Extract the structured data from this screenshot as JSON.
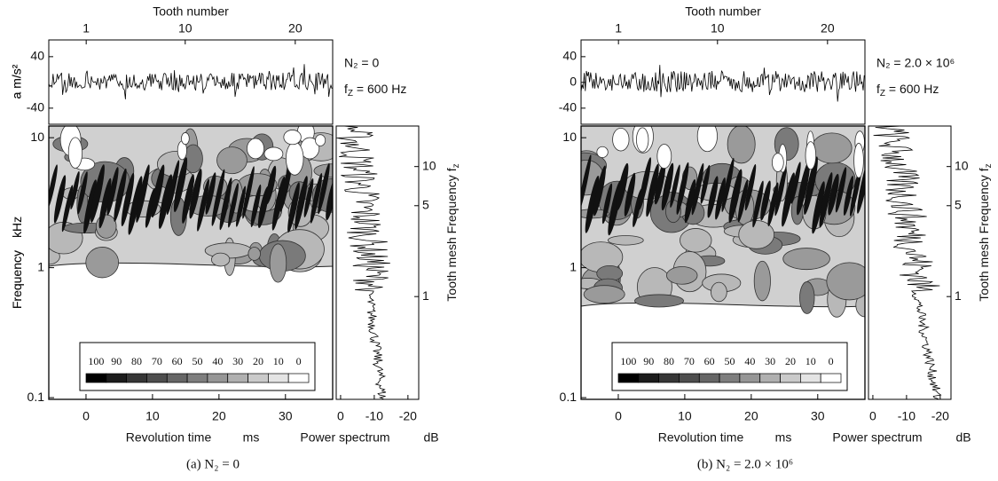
{
  "chart_data": [
    {
      "type": "contour",
      "caption": "(a) N₂ = 0",
      "tooth_axis": {
        "label": "Tooth number",
        "xlim": [
          -2.4,
          23.4
        ],
        "xticks": [
          1,
          10,
          20
        ]
      },
      "signal": {
        "ylabel": "a   m/s²",
        "ylim": [
          -65,
          66
        ],
        "yticks": [
          40,
          -40
        ]
      },
      "annotation": {
        "n2": "N₂ = 0",
        "fz": [
          "f",
          "Z",
          " = 600 Hz"
        ]
      },
      "xlabel": "Revolution time",
      "xunit": "ms",
      "xlim": [
        -5.6,
        37.1
      ],
      "xticks": [
        0,
        10,
        20,
        30
      ],
      "ylabel": "Frequency",
      "yunit": "kHz",
      "log_y": true,
      "ylim": [
        0.097,
        12.3
      ],
      "yticks": [
        0.1,
        1,
        10
      ],
      "y2label": [
        "Tooth mesh Frequency f",
        "z"
      ],
      "y2lim": [
        0.162,
        20.5
      ],
      "y2ticks": [
        1,
        5,
        10
      ],
      "spectrum": {
        "xlabel": "Power spectrum",
        "xunit": "dB",
        "xlim": [
          1.3,
          -23.2
        ],
        "xticks": [
          0,
          -10,
          -20
        ]
      },
      "legend": {
        "levels": [
          100,
          90,
          80,
          70,
          60,
          50,
          40,
          30,
          20,
          10,
          0
        ],
        "colors": [
          "#000000",
          "#1c1c1c",
          "#363636",
          "#4e4e4e",
          "#666666",
          "#7e7e7e",
          "#969696",
          "#b0b0b0",
          "#cacaca",
          "#e4e4e4",
          "#ffffff"
        ]
      }
    },
    {
      "type": "contour",
      "caption": "(b) N₂ = 2.0 × 10⁶",
      "tooth_axis": {
        "label": "Tooth number",
        "xlim": [
          -2.4,
          23.4
        ],
        "xticks": [
          1,
          10,
          20
        ]
      },
      "signal": {
        "ylabel": "a   m/s²",
        "ylim": [
          -65,
          66
        ],
        "yticks": [
          40,
          0,
          -40
        ]
      },
      "annotation": {
        "n2": "N₂ = 2.0 × 10⁶",
        "fz": [
          "f",
          "Z",
          " = 600 Hz"
        ]
      },
      "xlabel": "Revolution time",
      "xunit": "ms",
      "xlim": [
        -5.6,
        37.1
      ],
      "xticks": [
        0,
        10,
        20,
        30
      ],
      "ylabel": "Frequency",
      "yunit": "kHz",
      "log_y": true,
      "ylim": [
        0.097,
        12.3
      ],
      "yticks": [
        0.1,
        1,
        10
      ],
      "y2label": [
        "Tooth mesh Frequency f",
        "z"
      ],
      "y2lim": [
        0.162,
        20.5
      ],
      "y2ticks": [
        1,
        5,
        10
      ],
      "spectrum": {
        "xlabel": "Power spectrum",
        "xunit": "dB",
        "xlim": [
          1.3,
          -23.2
        ],
        "xticks": [
          0,
          -10,
          -20
        ]
      },
      "legend": {
        "levels": [
          100,
          90,
          80,
          70,
          60,
          50,
          40,
          30,
          20,
          10,
          0
        ],
        "colors": [
          "#000000",
          "#1c1c1c",
          "#363636",
          "#4e4e4e",
          "#666666",
          "#7e7e7e",
          "#969696",
          "#b0b0b0",
          "#cacaca",
          "#e4e4e4",
          "#ffffff"
        ]
      }
    }
  ]
}
